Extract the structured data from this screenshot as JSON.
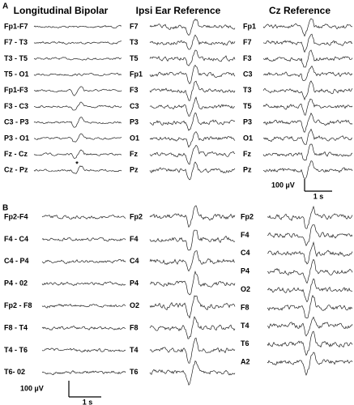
{
  "panel_a": {
    "label": "A",
    "columns": [
      {
        "title": "Longitudinal Bipolar",
        "channels": [
          "Fp1-F7",
          "F7 - T3",
          "T3 - T5",
          "T5 - O1",
          "Fp1-F3",
          "F3 - C3",
          "C3 - P3",
          "P3 - O1",
          "Fz - Cz",
          "Cz - Pz"
        ]
      },
      {
        "title": "Ipsi Ear Reference",
        "channels": [
          "F7",
          "T3",
          "T5",
          "Fp1",
          "F3",
          "C3",
          "P3",
          "O1",
          "Fz",
          "Pz"
        ]
      },
      {
        "title": "Cz Reference",
        "channels": [
          "Fp1",
          "F7",
          "F3",
          "C3",
          "T3",
          "T5",
          "P3",
          "O1",
          "Fz",
          "Pz"
        ]
      }
    ],
    "annotation": "*",
    "scale": {
      "amplitude": "100 µV",
      "time": "1 s"
    }
  },
  "panel_b": {
    "label": "B",
    "columns": [
      {
        "channels": [
          "Fp2-F4",
          "F4 - C4",
          "C4 - P4",
          "P4 - 02",
          "Fp2 - F8",
          "F8 - T4",
          "T4 - T6",
          "T6- 02"
        ]
      },
      {
        "channels": [
          "Fp2",
          "F4",
          "C4",
          "P4",
          "O2",
          "F8",
          "T4",
          "T6"
        ]
      },
      {
        "channels": [
          "Fp2",
          "F4",
          "C4",
          "P4",
          "O2",
          "F8",
          "T4",
          "T6",
          "A2"
        ]
      }
    ],
    "scale": {
      "amplitude": "100 µV",
      "time": "1 s"
    }
  }
}
